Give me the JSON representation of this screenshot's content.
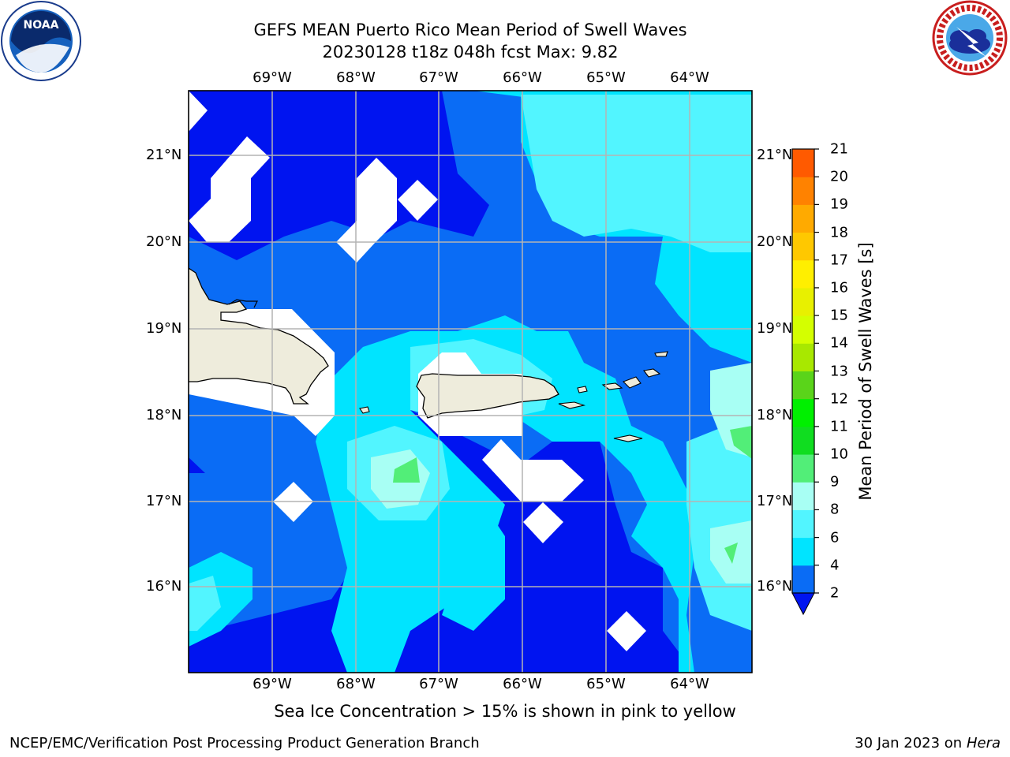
{
  "title_line1": "GEFS MEAN Puerto Rico Mean Period of Swell Waves",
  "title_line2": "20230128 t18z 048h fcst   Max: 9.82",
  "lon_labels": [
    "69°W",
    "68°W",
    "67°W",
    "66°W",
    "65°W",
    "64°W"
  ],
  "lat_labels": [
    "21°N",
    "20°N",
    "19°N",
    "18°N",
    "17°N",
    "16°N"
  ],
  "colorbar": {
    "label": "Mean Period of Swell Waves [s]",
    "ticks": [
      "2",
      "4",
      "6",
      "8",
      "9",
      "10",
      "11",
      "12",
      "13",
      "14",
      "15",
      "16",
      "17",
      "18",
      "19",
      "20",
      "21"
    ],
    "colors": [
      "#0a6cf5",
      "#00e4ff",
      "#52f5ff",
      "#a8fff4",
      "#52ee78",
      "#10dd20",
      "#00f000",
      "#5ad41a",
      "#a8e800",
      "#d4ff00",
      "#e8f000",
      "#ffef00",
      "#ffc800",
      "#ffaa00",
      "#ff8200",
      "#ff5a00",
      "#ff2d00",
      "#ff0000"
    ],
    "under_color": "#0014f0"
  },
  "map_colors": {
    "deep_blue": "#0014f0",
    "blue": "#0a6cf5",
    "cyan": "#00e4ff",
    "light_cyan": "#52f5ff",
    "pale_cyan": "#a8fff4",
    "green": "#52ee78",
    "land": "#eeecdc",
    "no_data": "#ffffff"
  },
  "note": "Sea Ice Concentration > 15% is shown in pink to yellow",
  "footer_left": "NCEP/EMC/Verification Post Processing Product Generation Branch",
  "footer_right_date": "30 Jan 2023 on ",
  "footer_right_host": "Hera",
  "logos": {
    "left": "NOAA",
    "right": "NATIONAL WEATHER SERVICE"
  }
}
